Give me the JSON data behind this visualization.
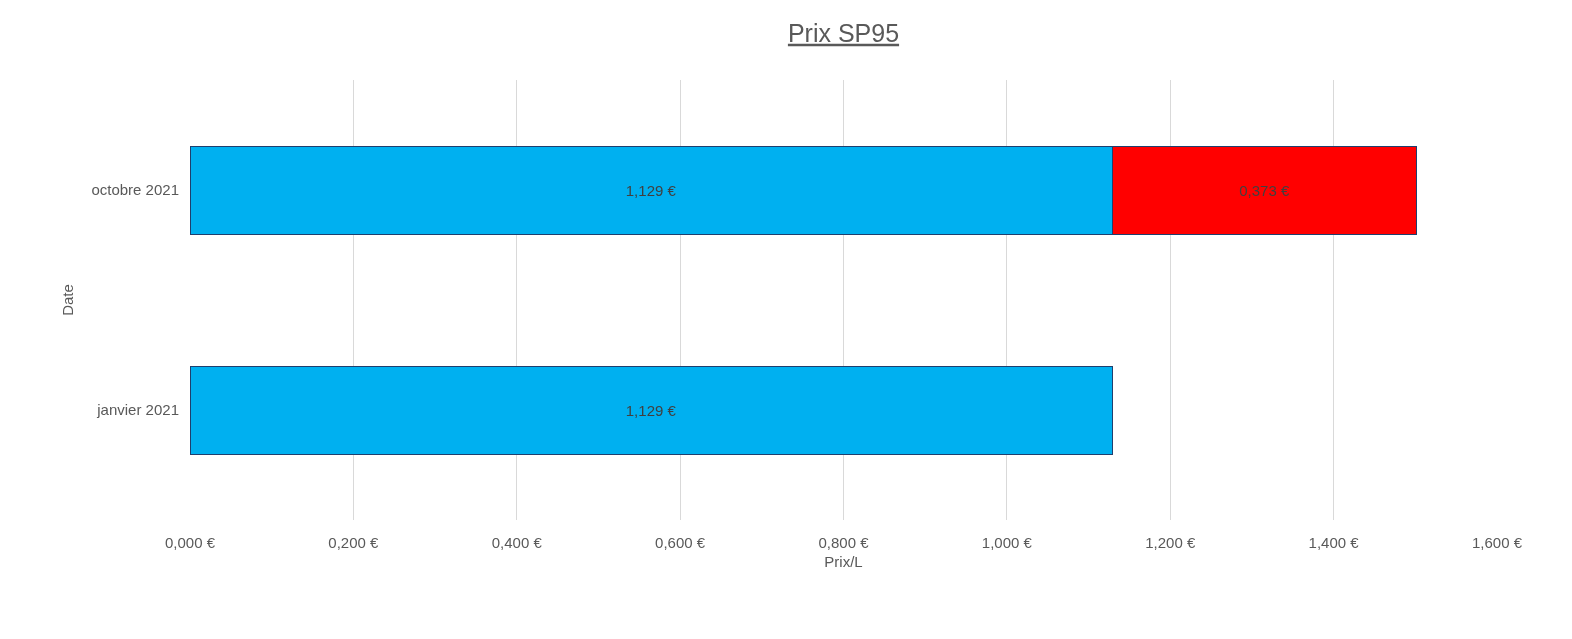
{
  "chart_data": {
    "type": "bar",
    "title": "Prix SP95",
    "xlabel": "Prix/L",
    "ylabel": "Date",
    "orientation": "horizontal",
    "stacked": true,
    "categories": [
      "octobre 2021",
      "janvier 2021"
    ],
    "series": [
      {
        "color": "#00b0f0",
        "values": [
          1.129,
          1.129
        ],
        "value_labels": [
          "1,129 €",
          "1,129 €"
        ]
      },
      {
        "color": "#ff0000",
        "values": [
          0.373,
          null
        ],
        "value_labels": [
          "0,373 €",
          null
        ]
      }
    ],
    "xlim": [
      0,
      1.6
    ],
    "xticks": [
      {
        "value": 0,
        "label": "0,000 €"
      },
      {
        "value": 0.2,
        "label": "0,200 €"
      },
      {
        "value": 0.4,
        "label": "0,400 €"
      },
      {
        "value": 0.6,
        "label": "0,600 €"
      },
      {
        "value": 0.8,
        "label": "0,800 €"
      },
      {
        "value": 1.0,
        "label": "1,000 €"
      },
      {
        "value": 1.2,
        "label": "1,200 €"
      },
      {
        "value": 1.4,
        "label": "1,400 €"
      },
      {
        "value": 1.6,
        "label": "1,600 €"
      }
    ],
    "grid": "x"
  }
}
